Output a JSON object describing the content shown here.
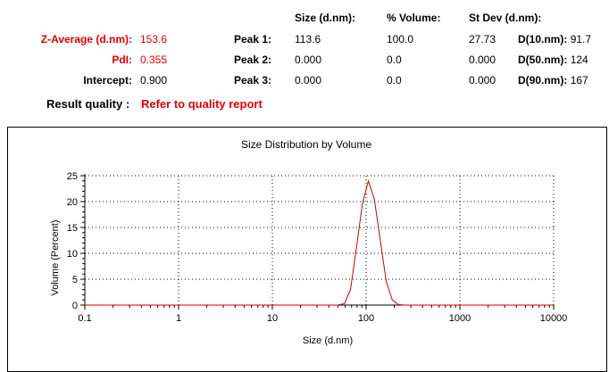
{
  "header": {
    "col_size": "Size (d.nm):",
    "col_volume": "% Volume:",
    "col_stdev": "St Dev (d.nm):"
  },
  "summary": {
    "zavg_label": "Z-Average (d.nm):",
    "zavg_value": "153.6",
    "pdi_label": "PdI:",
    "pdi_value": "0.355",
    "intercept_label": "Intercept:",
    "intercept_value": "0.900",
    "quality_label": "Result quality :",
    "quality_value": "Refer to quality report"
  },
  "peaks": [
    {
      "label": "Peak 1:",
      "size": "113.6",
      "volume": "100.0",
      "stdev": "27.73",
      "d_label": "D(10.nm):",
      "d_value": "91.7"
    },
    {
      "label": "Peak 2:",
      "size": "0.000",
      "volume": "0.0",
      "stdev": "0.000",
      "d_label": "D(50.nm):",
      "d_value": "124"
    },
    {
      "label": "Peak 3:",
      "size": "0.000",
      "volume": "0.0",
      "stdev": "0.000",
      "d_label": "D(90.nm):",
      "d_value": "167"
    }
  ],
  "colors": {
    "accent": "#dd0000",
    "series": "#cc0000"
  },
  "chart_data": {
    "type": "line",
    "title": "Size Distribution by Volume",
    "xlabel": "Size (d.nm)",
    "ylabel": "Volume (Percent)",
    "x_scale": "log",
    "xlim": [
      0.1,
      10000
    ],
    "ylim": [
      0,
      25
    ],
    "x_ticks": [
      "0.1",
      "1",
      "10",
      "100",
      "1000",
      "10000"
    ],
    "y_ticks": [
      "0",
      "5",
      "10",
      "15",
      "20",
      "25"
    ],
    "grid": true,
    "series": [
      {
        "x": [
          0.1,
          50,
          58.8,
          68.1,
          78.8,
          91.3,
          105.7,
          122.4,
          141.8,
          164.2,
          190.1,
          220.2,
          255,
          10000
        ],
        "y": [
          0,
          0,
          0.3,
          3.0,
          11.0,
          19.5,
          24.0,
          20.5,
          12.5,
          4.5,
          1.0,
          0.1,
          0,
          0
        ]
      }
    ]
  }
}
